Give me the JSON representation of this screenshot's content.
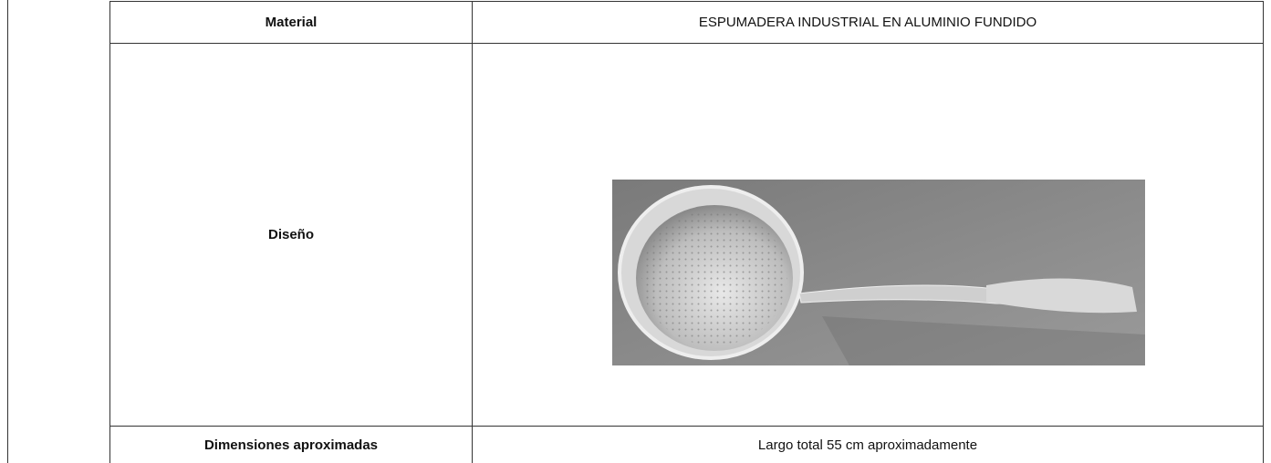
{
  "table": {
    "rows": [
      [
        "Material",
        "ESPUMADERA INDUSTRIAL EN ALUMINIO FUNDIDO"
      ],
      [
        "Diseño"
      ],
      [
        "Dimensiones aproximadas",
        "Largo total 55 cm aproximadamente"
      ]
    ]
  }
}
